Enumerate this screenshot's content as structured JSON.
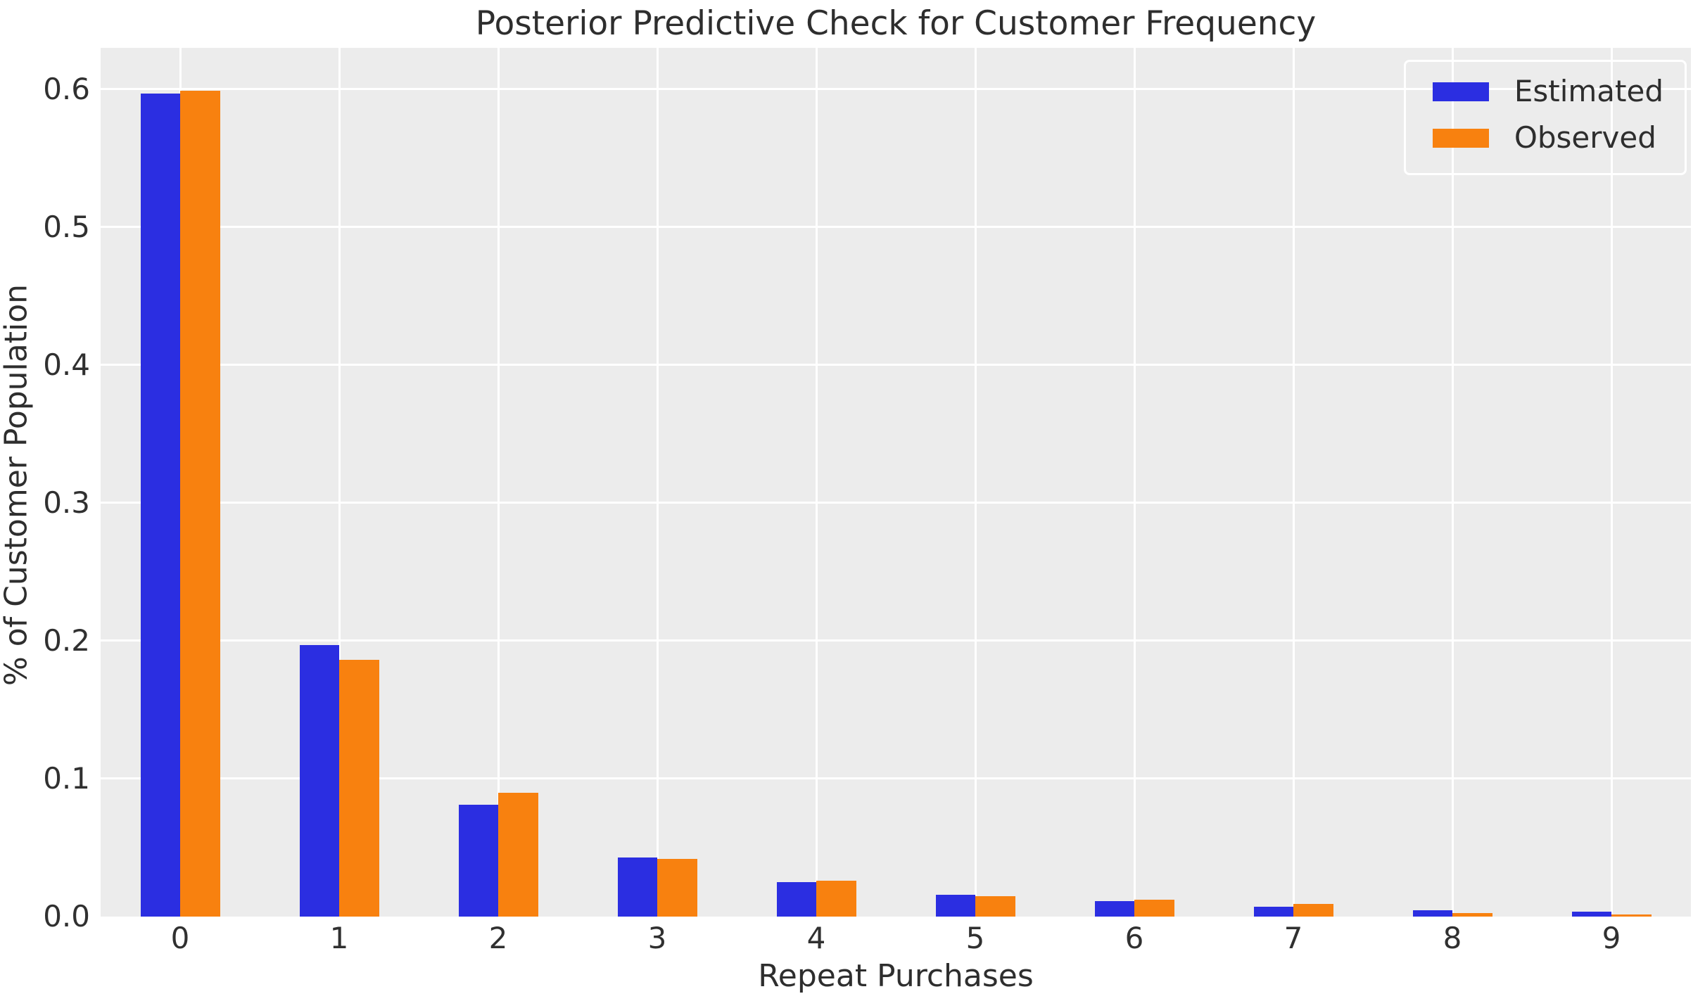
{
  "chart_data": {
    "type": "bar",
    "title": "Posterior Predictive Check for Customer Frequency",
    "xlabel": "Repeat Purchases",
    "ylabel": "% of Customer Population",
    "categories": [
      "0",
      "1",
      "2",
      "3",
      "4",
      "5",
      "6",
      "7",
      "8",
      "9"
    ],
    "series": [
      {
        "name": "Estimated",
        "color": "#2b2ee1",
        "values": [
          0.597,
          0.197,
          0.081,
          0.043,
          0.025,
          0.016,
          0.011,
          0.007,
          0.0045,
          0.0035
        ]
      },
      {
        "name": "Observed",
        "color": "#f8810f",
        "values": [
          0.599,
          0.186,
          0.09,
          0.042,
          0.026,
          0.015,
          0.012,
          0.009,
          0.0025,
          0.0015
        ]
      }
    ],
    "ylim": [
      0,
      0.63
    ],
    "yticks": [
      0.0,
      0.1,
      0.2,
      0.3,
      0.4,
      0.5,
      0.6
    ],
    "ytick_labels": [
      "0.0",
      "0.1",
      "0.2",
      "0.3",
      "0.4",
      "0.5",
      "0.6"
    ],
    "grid": true,
    "grid_color": "#ffffff",
    "plot_bg": "#ececec",
    "legend_position": "upper right"
  }
}
